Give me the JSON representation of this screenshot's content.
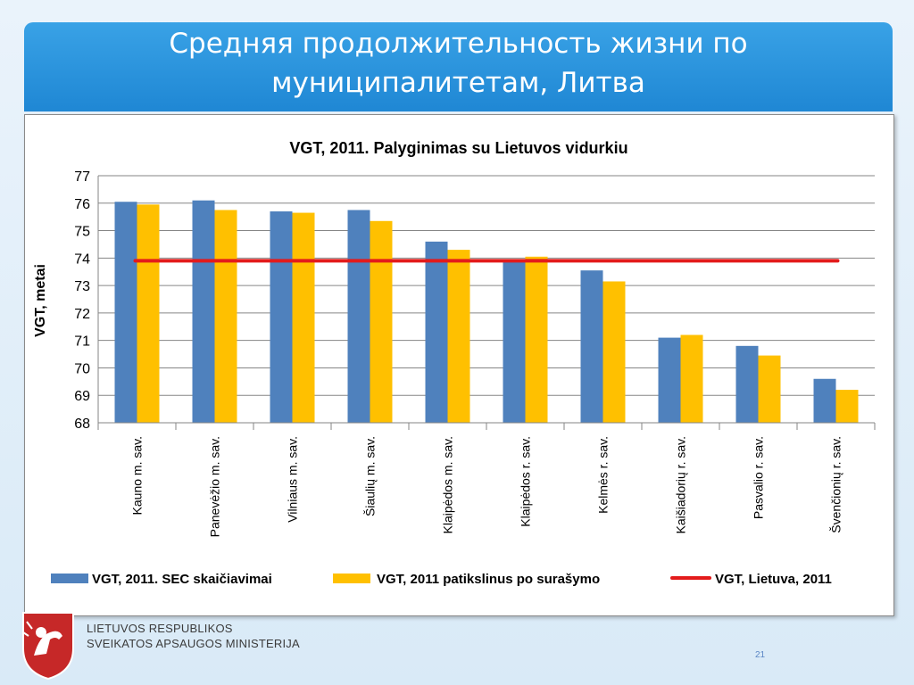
{
  "slide": {
    "title_line1": "Средняя продолжительность жизни по",
    "title_line2": "муниципалитетам,  Литва",
    "page_number": "21"
  },
  "footer": {
    "ministry_line1": "LIETUVOS RESPUBLIKOS",
    "ministry_line2": "SVEIKATOS APSAUGOS MINISTERIJA"
  },
  "chart_data": {
    "type": "bar",
    "title": "VGT, 2011. Palyginimas su Lietuvos vidurkiu",
    "xlabel": "",
    "ylabel": "VGT, metai",
    "ylim": [
      68,
      77
    ],
    "yticks": [
      68,
      69,
      70,
      71,
      72,
      73,
      74,
      75,
      76,
      77
    ],
    "grid": true,
    "legend_position": "bottom",
    "categories": [
      "Kauno m. sav.",
      "Panevėžio m. sav.",
      "Vilniaus m. sav.",
      "Šiaulių m. sav.",
      "Klaipėdos m. sav.",
      "Klaipėdos r. sav.",
      "Kelmės r. sav.",
      "Kaišiadorių r. sav.",
      "Pasvalio r. sav.",
      "Švenčionių r. sav."
    ],
    "series": [
      {
        "name": "VGT, 2011. SEC skaičiavimai",
        "color": "#4f81bd",
        "values": [
          76.05,
          76.1,
          75.7,
          75.75,
          74.6,
          73.95,
          73.55,
          71.1,
          70.8,
          69.6
        ]
      },
      {
        "name": "VGT, 2011 patikslinus po surašymo",
        "color": "#ffc000",
        "values": [
          75.95,
          75.75,
          75.65,
          75.35,
          74.3,
          74.05,
          73.15,
          71.2,
          70.45,
          69.2
        ]
      }
    ],
    "reference_line": {
      "name": "VGT, Lietuva, 2011",
      "color": "#e31b1b",
      "value": 73.9
    }
  }
}
